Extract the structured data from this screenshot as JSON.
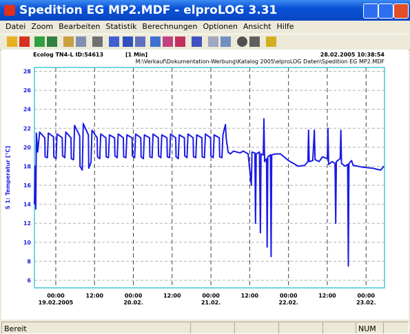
{
  "window": {
    "title": "Spedition EG MP2.MDF - elproLOG 3.31"
  },
  "menu": [
    "Datei",
    "Zoom",
    "Bearbeiten",
    "Statistik",
    "Berechnungen",
    "Optionen",
    "Ansicht",
    "Hilfe"
  ],
  "status": {
    "text": "Bereit",
    "num": "NUM"
  },
  "chart_data": {
    "type": "line",
    "header": {
      "device": "Ecolog TN4-L  ID:54613",
      "interval": "[1 Min]",
      "timestamp": "28.02.2005  10:38:54",
      "file": "M:\\Verkauf\\Dokumentation-Werbung\\Katalog 2005\\elproLOG Daten\\Spedition EG MP2.MDF"
    },
    "y_label": "S 1: Temperatur [°C]",
    "xlim": [
      -6.6,
      101.7
    ],
    "xticks": [
      {
        "value": 0,
        "label": "00:00",
        "date": "19.02.2005"
      },
      {
        "value": 12,
        "label": "12:00"
      },
      {
        "value": 24,
        "label": "00:00",
        "date": "20.02."
      },
      {
        "value": 36,
        "label": "12:00"
      },
      {
        "value": 48,
        "label": "00:00",
        "date": "21.02."
      },
      {
        "value": 60,
        "label": "12:00"
      },
      {
        "value": 72,
        "label": "00:00",
        "date": "22.02."
      },
      {
        "value": 84,
        "label": "12:00"
      },
      {
        "value": 96,
        "label": "00:00",
        "date": "23.02."
      }
    ],
    "ylim": [
      5.2,
      28.4
    ],
    "yticks": [
      6,
      8,
      10,
      12,
      14,
      16,
      18,
      20,
      22,
      24,
      26,
      28
    ],
    "grid": true,
    "x": [
      -6.6,
      -6.4,
      -6.2,
      -6.0,
      -5.6,
      -5.0,
      -3.4,
      -3.3,
      -2.6,
      -2.3,
      -0.7,
      -0.6,
      0.1,
      0.4,
      2.0,
      2.1,
      2.8,
      3.1,
      4.7,
      4.8,
      5.5,
      5.8,
      7.4,
      7.5,
      8.2,
      8.5,
      10.1,
      10.2,
      10.9,
      11.2,
      12.8,
      12.9,
      13.6,
      13.9,
      15.5,
      15.6,
      16.3,
      16.6,
      18.2,
      18.3,
      19.0,
      19.3,
      20.9,
      21.0,
      21.7,
      22.0,
      23.6,
      23.7,
      24.4,
      24.7,
      26.3,
      26.4,
      27.1,
      27.4,
      29.0,
      29.1,
      29.8,
      30.1,
      31.7,
      31.8,
      32.5,
      32.8,
      34.4,
      34.5,
      35.2,
      35.5,
      37.1,
      37.2,
      37.9,
      38.2,
      39.8,
      39.9,
      40.6,
      40.9,
      42.5,
      42.6,
      43.3,
      43.6,
      45.2,
      45.3,
      46.0,
      46.3,
      47.9,
      48.0,
      48.7,
      49.0,
      50.6,
      50.7,
      51.4,
      51.7,
      52.5,
      52.7,
      53.3,
      54.0,
      55.0,
      57.0,
      58.0,
      59.5,
      60.5,
      60.7,
      61.6,
      61.8,
      62.0,
      63.0,
      63.3,
      63.5,
      64.2,
      64.4,
      64.6,
      65.2,
      65.4,
      65.6,
      66.4,
      66.6,
      66.8,
      68.0,
      69.5,
      72.0,
      75.0,
      77.0,
      78.0,
      78.2,
      78.4,
      79.5,
      80.0,
      80.2,
      81.5,
      82.5,
      84.0,
      84.2,
      84.4,
      85.5,
      86.4,
      86.6,
      86.8,
      88.0,
      88.2,
      88.4,
      89.5,
      90.3,
      90.5,
      90.7,
      91.5,
      92.0,
      95.0,
      98.0,
      100.5,
      101.5
    ],
    "series": [
      {
        "name": "S 1",
        "color": "#1a1ae6",
        "values": [
          14,
          18,
          13.5,
          21.5,
          19.5,
          21.6,
          21.0,
          19.0,
          18.9,
          21.5,
          21.1,
          19.0,
          18.8,
          21.4,
          21.0,
          19.1,
          18.9,
          21.6,
          21.0,
          18.8,
          18.7,
          22.3,
          21.2,
          18.0,
          17.6,
          22.5,
          21.3,
          17.8,
          18.4,
          21.8,
          21.0,
          19.0,
          18.8,
          21.4,
          21.0,
          19.0,
          18.9,
          21.3,
          21.0,
          19.1,
          18.9,
          21.4,
          21.0,
          19.0,
          18.9,
          21.3,
          21.0,
          19.1,
          18.9,
          21.4,
          21.0,
          19.0,
          18.8,
          21.3,
          21.0,
          19.0,
          18.9,
          21.4,
          21.0,
          19.1,
          18.9,
          21.3,
          21.0,
          19.0,
          18.9,
          21.4,
          21.0,
          19.0,
          18.8,
          21.3,
          21.0,
          19.1,
          18.9,
          21.4,
          21.0,
          19.0,
          18.9,
          21.3,
          21.0,
          19.0,
          18.9,
          21.4,
          21.0,
          19.1,
          18.9,
          21.3,
          21.0,
          19.0,
          18.9,
          21.3,
          22.4,
          21.0,
          19.5,
          19.3,
          19.6,
          19.4,
          19.6,
          19.3,
          16.0,
          19.5,
          19.4,
          12.0,
          19.3,
          19.5,
          11.0,
          19.3,
          19.2,
          23.0,
          18.5,
          18.8,
          9.5,
          19.0,
          19.2,
          8.5,
          19.2,
          19.3,
          19.3,
          18.6,
          18.0,
          18.1,
          18.5,
          21.8,
          18.5,
          18.6,
          21.8,
          18.7,
          18.5,
          19.0,
          18.8,
          22.0,
          18.2,
          18.5,
          18.3,
          12.0,
          18.5,
          18.8,
          21.8,
          18.3,
          18.0,
          18.2,
          7.5,
          18.3,
          18.6,
          18.1,
          17.9,
          17.8,
          17.6,
          18.0
        ]
      }
    ]
  }
}
